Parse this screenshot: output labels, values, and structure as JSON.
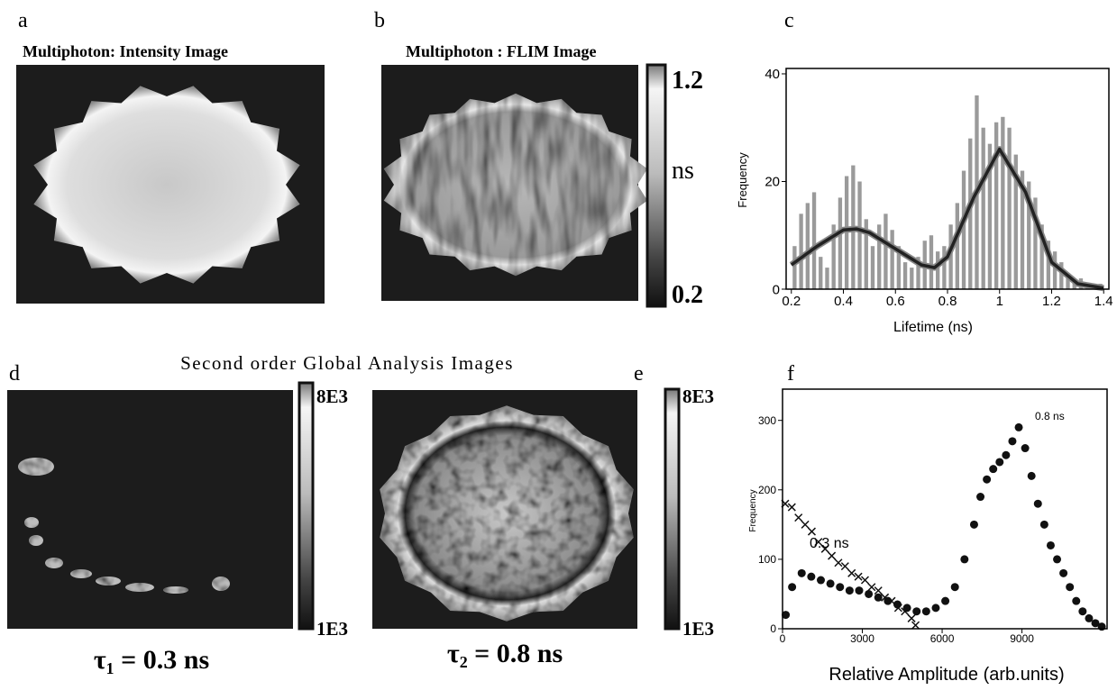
{
  "panels": {
    "a": {
      "label": "a",
      "title": "Multiphoton:  Intensity Image"
    },
    "b": {
      "label": "b",
      "title": "Multiphoton : FLIM Image",
      "colorbar": {
        "top": "1.2",
        "unit": "ns",
        "bottom": "0.2"
      }
    },
    "section_title": "Second order Global Analysis Images",
    "d": {
      "label": "d",
      "caption": "τ₁ =  0.3 ns",
      "colorbar": {
        "top": "8E3",
        "bottom": "1E3"
      }
    },
    "e": {
      "label": "e",
      "caption": "τ₂ =  0.8 ns",
      "colorbar": {
        "top": "8E3",
        "bottom": "1E3"
      }
    }
  },
  "chart_data": [
    {
      "type": "histogram",
      "panel_label": "c",
      "x_label": "Lifetime (ns)",
      "y_label": "Frequency",
      "color": "#9a9a9a",
      "bins": [
        0.2,
        0.225,
        0.25,
        0.275,
        0.3,
        0.325,
        0.35,
        0.375,
        0.4,
        0.425,
        0.45,
        0.475,
        0.5,
        0.525,
        0.55,
        0.575,
        0.6,
        0.625,
        0.65,
        0.675,
        0.7,
        0.725,
        0.75,
        0.775,
        0.8,
        0.825,
        0.85,
        0.875,
        0.9,
        0.925,
        0.95,
        0.975,
        1,
        1.025,
        1.05,
        1.075,
        1.1,
        1.125,
        1.15,
        1.175,
        1.2,
        1.225,
        1.25,
        1.275,
        1.3,
        1.325,
        1.35,
        1.375,
        1.4
      ],
      "values": [
        8,
        14,
        16,
        18,
        6,
        4,
        12,
        17,
        21,
        23,
        20,
        13,
        8,
        12,
        14,
        11,
        8,
        5,
        4,
        6,
        9,
        10,
        7,
        8,
        12,
        16,
        22,
        28,
        36,
        30,
        27,
        31,
        32,
        30,
        25,
        22,
        20,
        17,
        12,
        9,
        7,
        5,
        3,
        2,
        2,
        1,
        1,
        1
      ],
      "fit": {
        "color": "#222222",
        "x": [
          0.2,
          0.3,
          0.4,
          0.45,
          0.5,
          0.6,
          0.7,
          0.75,
          0.8,
          0.9,
          1,
          1.1,
          1.2,
          1.3,
          1.4
        ],
        "values": [
          4.5,
          8,
          11,
          11.2,
          10.5,
          7.5,
          4.5,
          4,
          6,
          17,
          26,
          18,
          5,
          1,
          0.2
        ]
      },
      "xlim": [
        0.18,
        1.42
      ],
      "xticks": [
        0.2,
        0.4,
        0.6,
        0.8,
        1,
        1.2,
        1.4
      ],
      "ylim": [
        0,
        41
      ],
      "yticks": [
        0,
        20,
        40
      ]
    },
    {
      "type": "scatter",
      "panel_label": "f",
      "x_label": "Relative Amplitude (arb.units)",
      "y_label": "Frequency",
      "annotations": [
        "0.3 ns",
        "0.8 ns"
      ],
      "series": [
        {
          "marker": "cross",
          "color": "#111111",
          "x": [
            100,
            350,
            600,
            850,
            1100,
            1350,
            1600,
            1850,
            2100,
            2350,
            2600,
            2850,
            3100,
            3350,
            3600,
            3850,
            4100,
            4350,
            4600,
            4850,
            5000
          ],
          "values": [
            180,
            175,
            160,
            150,
            140,
            125,
            115,
            105,
            95,
            90,
            80,
            75,
            70,
            60,
            55,
            45,
            40,
            30,
            25,
            15,
            5
          ]
        },
        {
          "marker": "dot",
          "color": "#111111",
          "x": [
            120,
            360,
            720,
            1080,
            1440,
            1800,
            2160,
            2520,
            2880,
            3240,
            3600,
            3960,
            4320,
            4680,
            5040,
            5400,
            5760,
            6120,
            6480,
            6840,
            7200,
            7440,
            7680,
            7920,
            8160,
            8400,
            8640,
            8880,
            9120,
            9360,
            9600,
            9840,
            10080,
            10320,
            10560,
            10800,
            11040,
            11280,
            11520,
            11760,
            12000
          ],
          "values": [
            20,
            60,
            80,
            75,
            70,
            65,
            60,
            55,
            55,
            50,
            45,
            40,
            35,
            30,
            25,
            25,
            30,
            40,
            60,
            100,
            150,
            190,
            215,
            230,
            240,
            250,
            270,
            290,
            260,
            220,
            180,
            150,
            120,
            100,
            80,
            60,
            40,
            25,
            15,
            8,
            3
          ]
        }
      ],
      "xlim": [
        0,
        12200
      ],
      "xticks": [
        0,
        3000,
        6000,
        9000
      ],
      "ylim": [
        0,
        345
      ],
      "yticks": [
        0,
        100,
        200,
        300
      ]
    }
  ]
}
